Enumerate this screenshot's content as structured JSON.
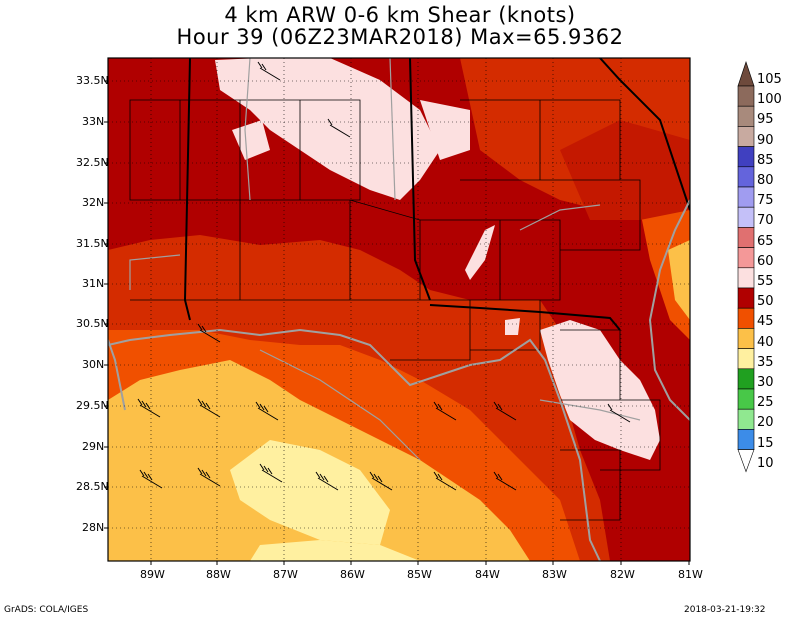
{
  "title": {
    "line1": "4 km ARW 0-6 km Shear (knots)",
    "line2": "Hour 39 (06Z23MAR2018) Max=65.9362"
  },
  "lat_labels": [
    "33.5N",
    "33N",
    "32.5N",
    "32N",
    "31.5N",
    "31N",
    "30.5N",
    "30N",
    "29.5N",
    "29N",
    "28.5N",
    "28N"
  ],
  "lon_labels": [
    "89W",
    "88W",
    "87W",
    "86W",
    "85W",
    "84W",
    "83W",
    "82W",
    "81W"
  ],
  "colorbar": {
    "labels": [
      "105",
      "100",
      "95",
      "90",
      "85",
      "80",
      "75",
      "70",
      "65",
      "60",
      "55",
      "50",
      "45",
      "40",
      "35",
      "30",
      "25",
      "20",
      "15",
      "10"
    ],
    "colors": [
      "#6e4a3c",
      "#8c6a5c",
      "#a88a7c",
      "#c8aaa0",
      "#4040c0",
      "#6464dc",
      "#a09cf0",
      "#c4c0f8",
      "#e07070",
      "#f49898",
      "#fce0e0",
      "#b00000",
      "#f05000",
      "#fcc048",
      "#fff0a0",
      "#20a020",
      "#48c848",
      "#90e890",
      "#3c8ce8",
      "#8cc0fc"
    ]
  },
  "footer": {
    "left": "GrADS: COLA/IGES",
    "right": "2018-03-21-19:32"
  }
}
